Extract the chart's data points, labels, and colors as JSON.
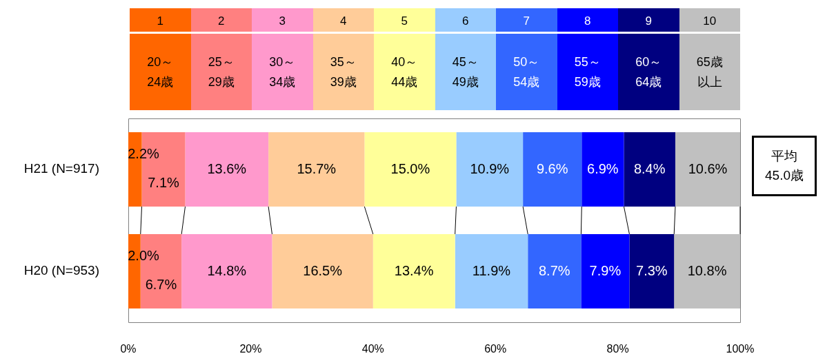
{
  "chart_data": {
    "type": "bar",
    "orientation": "horizontal",
    "stacked": true,
    "legend": "top",
    "grid": false,
    "categories": [
      "H21 (N=917)",
      "H20 (N=953)"
    ],
    "xlim": [
      0,
      100
    ],
    "xticks": [
      {
        "value": 0,
        "label": "0%"
      },
      {
        "value": 20,
        "label": "20%"
      },
      {
        "value": 40,
        "label": "40%"
      },
      {
        "value": 60,
        "label": "60%"
      },
      {
        "value": 80,
        "label": "80%"
      },
      {
        "value": 100,
        "label": "100%"
      }
    ],
    "series": [
      {
        "name": "20～24歳",
        "color": "#ff6600",
        "values": [
          2.2,
          2.0
        ],
        "value_labels": [
          "2.2%",
          "2.0%"
        ]
      },
      {
        "name": "25～29歳",
        "color": "#ff8080",
        "values": [
          7.1,
          6.7
        ],
        "value_labels": [
          "7.1%",
          "6.7%"
        ]
      },
      {
        "name": "30～34歳",
        "color": "#ff99cc",
        "values": [
          13.6,
          14.8
        ],
        "value_labels": [
          "13.6%",
          "14.8%"
        ]
      },
      {
        "name": "35～39歳",
        "color": "#ffcc99",
        "values": [
          15.7,
          16.5
        ],
        "value_labels": [
          "15.7%",
          "16.5%"
        ]
      },
      {
        "name": "40～44歳",
        "color": "#ffff99",
        "values": [
          15.0,
          13.4
        ],
        "value_labels": [
          "15.0%",
          "13.4%"
        ]
      },
      {
        "name": "45～49歳",
        "color": "#99ccff",
        "values": [
          10.9,
          11.9
        ],
        "value_labels": [
          "10.9%",
          "11.9%"
        ]
      },
      {
        "name": "50～54歳",
        "color": "#3366ff",
        "values": [
          9.6,
          8.7
        ],
        "value_labels": [
          "9.6%",
          "8.7%"
        ]
      },
      {
        "name": "55～59歳",
        "color": "#0000ff",
        "values": [
          6.9,
          7.9
        ],
        "value_labels": [
          "6.9%",
          "7.9%"
        ]
      },
      {
        "name": "60～64歳",
        "color": "#000080",
        "values": [
          8.4,
          7.3
        ],
        "value_labels": [
          "8.4%",
          "7.3%"
        ]
      },
      {
        "name": "65歳以上",
        "color": "#c0c0c0",
        "values": [
          10.6,
          10.8
        ],
        "value_labels": [
          "10.6%",
          "10.8%"
        ]
      }
    ],
    "annotations": [
      "1",
      "2",
      "3",
      "4",
      "5",
      "6",
      "7",
      "8",
      "9",
      "10",
      "平均\n45.0歳"
    ]
  }
}
